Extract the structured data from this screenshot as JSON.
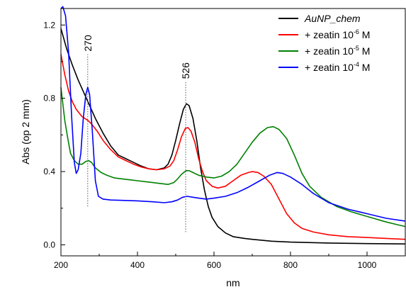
{
  "chart_data": {
    "type": "line",
    "title": "",
    "xlabel": "nm",
    "ylabel": "Abs (op 2 mm)",
    "xlim": [
      200,
      1100
    ],
    "ylim": [
      -0.06,
      1.29
    ],
    "x_ticks": [
      200,
      400,
      600,
      800,
      1000
    ],
    "y_ticks": [
      0.0,
      0.4,
      0.8,
      1.2
    ],
    "x_tick_labels": [
      "200",
      "400",
      "600",
      "800",
      "1000"
    ],
    "y_tick_labels": [
      "0.0",
      "0.4",
      "0.8",
      "1.2"
    ],
    "grid": false,
    "legend_position": "top-right",
    "annotations": [
      {
        "label": "270",
        "x": 270,
        "y_from": 0.21,
        "y_to": 1.04
      },
      {
        "label": "526",
        "x": 526,
        "y_from": 0.07,
        "y_to": 0.89
      }
    ],
    "series": [
      {
        "name": "AuNP_chem",
        "legend_main": "AuNP_chem",
        "legend_sup": "",
        "legend_tail": "",
        "italic": true,
        "color": "#000000",
        "points": [
          [
            200,
            1.18
          ],
          [
            215,
            1.07
          ],
          [
            230,
            0.98
          ],
          [
            245,
            0.9
          ],
          [
            260,
            0.83
          ],
          [
            275,
            0.76
          ],
          [
            290,
            0.69
          ],
          [
            310,
            0.61
          ],
          [
            330,
            0.54
          ],
          [
            350,
            0.49
          ],
          [
            370,
            0.47
          ],
          [
            390,
            0.45
          ],
          [
            410,
            0.43
          ],
          [
            430,
            0.415
          ],
          [
            450,
            0.41
          ],
          [
            470,
            0.42
          ],
          [
            480,
            0.44
          ],
          [
            490,
            0.49
          ],
          [
            500,
            0.57
          ],
          [
            510,
            0.66
          ],
          [
            520,
            0.74
          ],
          [
            528,
            0.77
          ],
          [
            535,
            0.76
          ],
          [
            545,
            0.69
          ],
          [
            555,
            0.57
          ],
          [
            565,
            0.42
          ],
          [
            575,
            0.3
          ],
          [
            585,
            0.21
          ],
          [
            595,
            0.15
          ],
          [
            610,
            0.1
          ],
          [
            630,
            0.065
          ],
          [
            650,
            0.045
          ],
          [
            680,
            0.035
          ],
          [
            700,
            0.03
          ],
          [
            750,
            0.02
          ],
          [
            800,
            0.015
          ],
          [
            900,
            0.01
          ],
          [
            1000,
            0.007
          ],
          [
            1100,
            0.005
          ]
        ]
      },
      {
        "name": "+ zeatin 10-6 M",
        "legend_main": "+ zeatin 10",
        "legend_sup": "-6",
        "legend_tail": " M",
        "italic": false,
        "color": "#ff0000",
        "points": [
          [
            200,
            1.04
          ],
          [
            210,
            0.93
          ],
          [
            220,
            0.84
          ],
          [
            230,
            0.78
          ],
          [
            240,
            0.74
          ],
          [
            255,
            0.7
          ],
          [
            270,
            0.68
          ],
          [
            280,
            0.66
          ],
          [
            295,
            0.62
          ],
          [
            310,
            0.57
          ],
          [
            330,
            0.52
          ],
          [
            350,
            0.48
          ],
          [
            370,
            0.46
          ],
          [
            390,
            0.44
          ],
          [
            410,
            0.425
          ],
          [
            430,
            0.415
          ],
          [
            450,
            0.41
          ],
          [
            470,
            0.415
          ],
          [
            485,
            0.43
          ],
          [
            495,
            0.46
          ],
          [
            505,
            0.52
          ],
          [
            515,
            0.59
          ],
          [
            525,
            0.635
          ],
          [
            532,
            0.64
          ],
          [
            540,
            0.62
          ],
          [
            550,
            0.56
          ],
          [
            560,
            0.47
          ],
          [
            570,
            0.4
          ],
          [
            580,
            0.35
          ],
          [
            595,
            0.32
          ],
          [
            610,
            0.31
          ],
          [
            630,
            0.32
          ],
          [
            650,
            0.35
          ],
          [
            670,
            0.38
          ],
          [
            690,
            0.395
          ],
          [
            700,
            0.4
          ],
          [
            715,
            0.395
          ],
          [
            730,
            0.375
          ],
          [
            750,
            0.33
          ],
          [
            770,
            0.25
          ],
          [
            790,
            0.17
          ],
          [
            810,
            0.12
          ],
          [
            830,
            0.09
          ],
          [
            860,
            0.07
          ],
          [
            900,
            0.055
          ],
          [
            950,
            0.045
          ],
          [
            1000,
            0.04
          ],
          [
            1050,
            0.035
          ],
          [
            1100,
            0.03
          ]
        ]
      },
      {
        "name": "+ zeatin 10-5 M",
        "legend_main": "+ zeatin 10",
        "legend_sup": "-5",
        "legend_tail": " M",
        "italic": false,
        "color": "#008000",
        "points": [
          [
            200,
            0.86
          ],
          [
            210,
            0.68
          ],
          [
            218,
            0.58
          ],
          [
            225,
            0.5
          ],
          [
            235,
            0.46
          ],
          [
            245,
            0.44
          ],
          [
            255,
            0.44
          ],
          [
            265,
            0.455
          ],
          [
            272,
            0.46
          ],
          [
            280,
            0.45
          ],
          [
            290,
            0.42
          ],
          [
            305,
            0.395
          ],
          [
            320,
            0.38
          ],
          [
            340,
            0.365
          ],
          [
            360,
            0.36
          ],
          [
            380,
            0.355
          ],
          [
            400,
            0.35
          ],
          [
            420,
            0.345
          ],
          [
            440,
            0.34
          ],
          [
            460,
            0.335
          ],
          [
            480,
            0.33
          ],
          [
            495,
            0.34
          ],
          [
            505,
            0.36
          ],
          [
            515,
            0.385
          ],
          [
            527,
            0.405
          ],
          [
            535,
            0.405
          ],
          [
            545,
            0.395
          ],
          [
            560,
            0.38
          ],
          [
            580,
            0.37
          ],
          [
            600,
            0.365
          ],
          [
            620,
            0.375
          ],
          [
            640,
            0.4
          ],
          [
            660,
            0.44
          ],
          [
            680,
            0.5
          ],
          [
            700,
            0.56
          ],
          [
            720,
            0.61
          ],
          [
            740,
            0.64
          ],
          [
            755,
            0.645
          ],
          [
            770,
            0.63
          ],
          [
            790,
            0.58
          ],
          [
            810,
            0.49
          ],
          [
            830,
            0.39
          ],
          [
            850,
            0.32
          ],
          [
            880,
            0.26
          ],
          [
            920,
            0.21
          ],
          [
            960,
            0.18
          ],
          [
            1000,
            0.155
          ],
          [
            1050,
            0.125
          ],
          [
            1080,
            0.11
          ],
          [
            1100,
            0.1
          ]
        ]
      },
      {
        "name": "+ zeatin 10-4 M",
        "legend_main": "+ zeatin 10",
        "legend_sup": "-4",
        "legend_tail": " M",
        "italic": false,
        "color": "#0000ff",
        "points": [
          [
            200,
            1.29
          ],
          [
            205,
            1.3
          ],
          [
            212,
            1.25
          ],
          [
            220,
            1.05
          ],
          [
            228,
            0.7
          ],
          [
            235,
            0.45
          ],
          [
            240,
            0.39
          ],
          [
            245,
            0.41
          ],
          [
            252,
            0.5
          ],
          [
            258,
            0.68
          ],
          [
            265,
            0.82
          ],
          [
            270,
            0.86
          ],
          [
            275,
            0.82
          ],
          [
            282,
            0.62
          ],
          [
            290,
            0.35
          ],
          [
            298,
            0.265
          ],
          [
            310,
            0.25
          ],
          [
            330,
            0.245
          ],
          [
            360,
            0.243
          ],
          [
            400,
            0.24
          ],
          [
            440,
            0.235
          ],
          [
            470,
            0.23
          ],
          [
            490,
            0.235
          ],
          [
            505,
            0.245
          ],
          [
            518,
            0.26
          ],
          [
            530,
            0.265
          ],
          [
            545,
            0.26
          ],
          [
            560,
            0.255
          ],
          [
            580,
            0.25
          ],
          [
            600,
            0.255
          ],
          [
            630,
            0.265
          ],
          [
            660,
            0.285
          ],
          [
            690,
            0.315
          ],
          [
            720,
            0.35
          ],
          [
            745,
            0.38
          ],
          [
            765,
            0.395
          ],
          [
            780,
            0.39
          ],
          [
            800,
            0.37
          ],
          [
            830,
            0.33
          ],
          [
            860,
            0.28
          ],
          [
            900,
            0.23
          ],
          [
            950,
            0.195
          ],
          [
            1000,
            0.17
          ],
          [
            1050,
            0.145
          ],
          [
            1100,
            0.13
          ]
        ]
      }
    ]
  }
}
